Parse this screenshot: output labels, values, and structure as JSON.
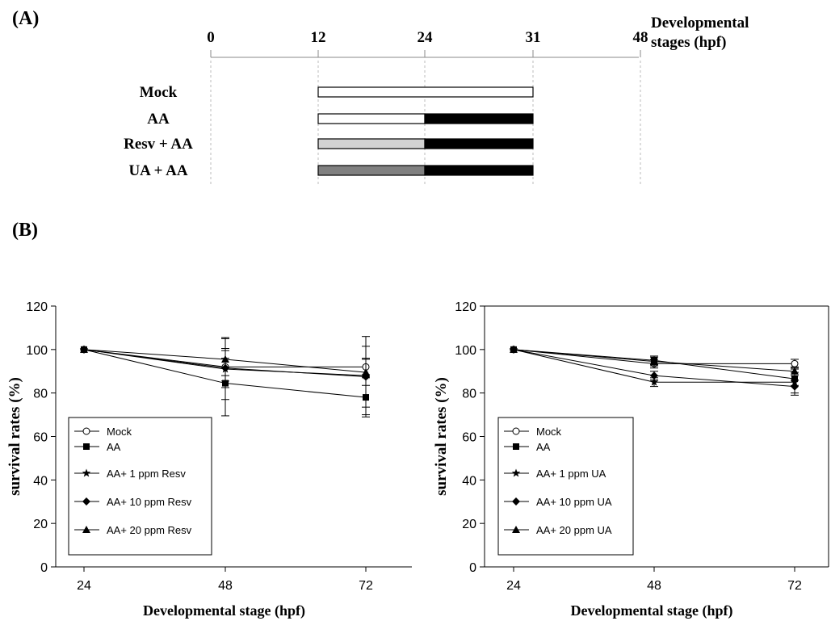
{
  "panel_a": {
    "label": "(A)",
    "axis_title_line1": "Developmental",
    "axis_title_line2": "stages (hpf)",
    "ticks": [
      "0",
      "12",
      "24",
      "31",
      "48"
    ],
    "rows": [
      {
        "label": "Mock",
        "segments": [
          {
            "from": 12,
            "to": 31,
            "fill": "#ffffff"
          }
        ]
      },
      {
        "label": "AA",
        "segments": [
          {
            "from": 12,
            "to": 24,
            "fill": "#ffffff"
          },
          {
            "from": 24,
            "to": 31,
            "fill": "#000000"
          }
        ]
      },
      {
        "label": "Resv + AA",
        "segments": [
          {
            "from": 12,
            "to": 24,
            "fill": "#d3d3d3"
          },
          {
            "from": 24,
            "to": 31,
            "fill": "#000000"
          }
        ]
      },
      {
        "label": "UA + AA",
        "segments": [
          {
            "from": 12,
            "to": 24,
            "fill": "#808080"
          },
          {
            "from": 24,
            "to": 31,
            "fill": "#000000"
          }
        ]
      }
    ]
  },
  "panel_b": {
    "label": "(B)"
  },
  "chart_data": [
    {
      "type": "line",
      "xlabel": "Developmental stage (hpf)",
      "ylabel": "survival rates (%)",
      "x": [
        24,
        48,
        72
      ],
      "ylim": [
        0,
        120
      ],
      "yticks": [
        0,
        20,
        40,
        60,
        80,
        100,
        120
      ],
      "legend_position": "bottom-left",
      "series": [
        {
          "name": "Mock",
          "marker": "circle-open",
          "values": [
            100,
            92,
            92
          ],
          "errors": [
            0,
            4,
            4
          ]
        },
        {
          "name": "AA",
          "marker": "square",
          "values": [
            100,
            84.5,
            78
          ],
          "errors": [
            0,
            15,
            9
          ]
        },
        {
          "name": "AA+ 1 ppm Resv",
          "marker": "star",
          "values": [
            100,
            91,
            88
          ],
          "errors": [
            0,
            14,
            18
          ]
        },
        {
          "name": "AA+ 10 ppm Resv",
          "marker": "diamond",
          "values": [
            100,
            91.5,
            87.5
          ],
          "errors": [
            0,
            9,
            14
          ]
        },
        {
          "name": "AA+ 20 ppm Resv",
          "marker": "triangle",
          "values": [
            100,
            95.5,
            89.5
          ],
          "errors": [
            0,
            10,
            6
          ]
        }
      ]
    },
    {
      "type": "line",
      "xlabel": "Developmental stage (hpf)",
      "ylabel": "survival rates (%)",
      "x": [
        24,
        48,
        72
      ],
      "ylim": [
        0,
        120
      ],
      "yticks": [
        0,
        20,
        40,
        60,
        80,
        100,
        120
      ],
      "legend_position": "bottom-left",
      "series": [
        {
          "name": "Mock",
          "marker": "circle-open",
          "values": [
            100,
            93.5,
            93.5
          ],
          "errors": [
            0,
            2,
            2
          ]
        },
        {
          "name": "AA",
          "marker": "square",
          "values": [
            100,
            95,
            86.5
          ],
          "errors": [
            0,
            2,
            3
          ]
        },
        {
          "name": "AA+ 1 ppm UA",
          "marker": "star",
          "values": [
            100,
            85,
            85
          ],
          "errors": [
            0,
            2,
            6
          ]
        },
        {
          "name": "AA+ 10 ppm UA",
          "marker": "diamond",
          "values": [
            100,
            88,
            83
          ],
          "errors": [
            0,
            2,
            3
          ]
        },
        {
          "name": "AA+ 20 ppm UA",
          "marker": "triangle",
          "values": [
            100,
            94.5,
            90
          ],
          "errors": [
            0,
            2,
            2
          ]
        }
      ]
    }
  ]
}
